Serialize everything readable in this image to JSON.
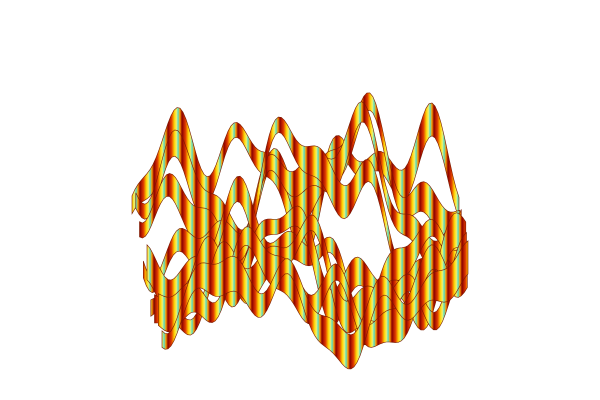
{
  "chart_data": {
    "type": "surface",
    "title": "",
    "xlabel": "",
    "ylabel": "",
    "zlabel": "",
    "axes_visible": false,
    "grid": false,
    "legend": "none",
    "colormap": [
      "#8b0000",
      "#d42a00",
      "#ff8c00",
      "#ffe600",
      "#7fffd4",
      "#40e0d0"
    ],
    "background": "#ffffff"
  }
}
